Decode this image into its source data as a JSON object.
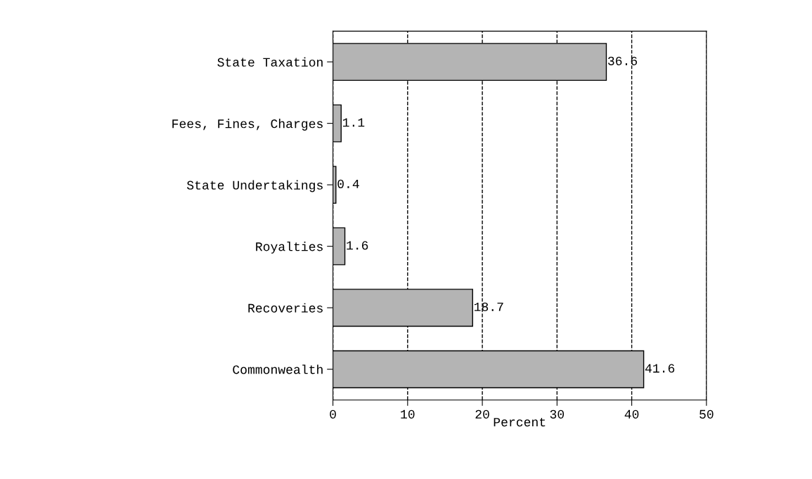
{
  "chart_data": {
    "type": "bar",
    "orientation": "horizontal",
    "xlabel": "Percent",
    "categories": [
      "State Taxation",
      "Fees, Fines, Charges",
      "State Undertakings",
      "Royalties",
      "Recoveries",
      "Commonwealth"
    ],
    "values": [
      36.6,
      1.1,
      0.4,
      1.6,
      18.7,
      41.6
    ],
    "color": "#b4b4b4",
    "xlim": [
      0,
      50
    ],
    "xticks": [
      0,
      10,
      20,
      30,
      40,
      50
    ],
    "grid": "x",
    "data_labels": true
  }
}
